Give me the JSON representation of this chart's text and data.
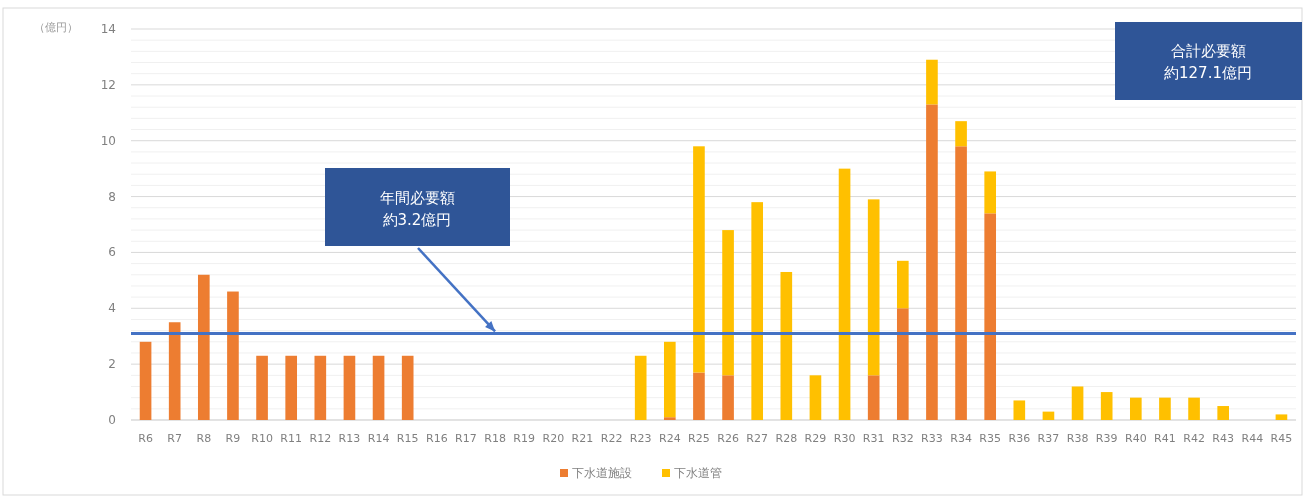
{
  "chart_data": {
    "type": "bar",
    "stacked": true,
    "ylabel": "（億円）",
    "categories": [
      "R6",
      "R7",
      "R8",
      "R9",
      "R10",
      "R11",
      "R12",
      "R13",
      "R14",
      "R15",
      "R16",
      "R17",
      "R18",
      "R19",
      "R20",
      "R21",
      "R22",
      "R23",
      "R24",
      "R25",
      "R26",
      "R27",
      "R28",
      "R29",
      "R30",
      "R31",
      "R32",
      "R33",
      "R34",
      "R35",
      "R36",
      "R37",
      "R38",
      "R39",
      "R40",
      "R41",
      "R42",
      "R43",
      "R44",
      "R45"
    ],
    "series": [
      {
        "name": "下水道施設",
        "color": "#ed7d31",
        "values": [
          2.8,
          3.5,
          5.2,
          4.6,
          2.3,
          2.3,
          2.3,
          2.3,
          2.3,
          2.3,
          0,
          0,
          0,
          0,
          0,
          0,
          0,
          0,
          0.1,
          1.7,
          1.6,
          0,
          0,
          0,
          0,
          1.6,
          4.0,
          11.3,
          9.8,
          7.4,
          0,
          0,
          0,
          0,
          0,
          0,
          0,
          0,
          0,
          0
        ]
      },
      {
        "name": "下水道管",
        "color": "#ffc000",
        "values": [
          0,
          0,
          0,
          0,
          0,
          0,
          0,
          0,
          0,
          0,
          0,
          0,
          0,
          0,
          0,
          0,
          0,
          2.3,
          2.7,
          8.1,
          5.2,
          7.8,
          5.3,
          1.6,
          9.0,
          6.3,
          1.7,
          1.6,
          0.9,
          1.5,
          0.7,
          0.3,
          1.2,
          1.0,
          0.8,
          0.8,
          0.8,
          0.5,
          0,
          0.2
        ]
      }
    ],
    "ylim": [
      0,
      14
    ],
    "yticks": [
      0,
      2,
      4,
      6,
      8,
      10,
      12,
      14
    ],
    "grid": "y",
    "legend": "bottom",
    "ref_lines": [
      {
        "axis": "y",
        "value": 3.1,
        "color": "#4472c4"
      }
    ],
    "annotations": [
      "年間必要額",
      {
        "text": "約3.2億円",
        "x": "R18",
        "y": 3.1
      },
      "合計必要額",
      "約127.1億円"
    ]
  }
}
